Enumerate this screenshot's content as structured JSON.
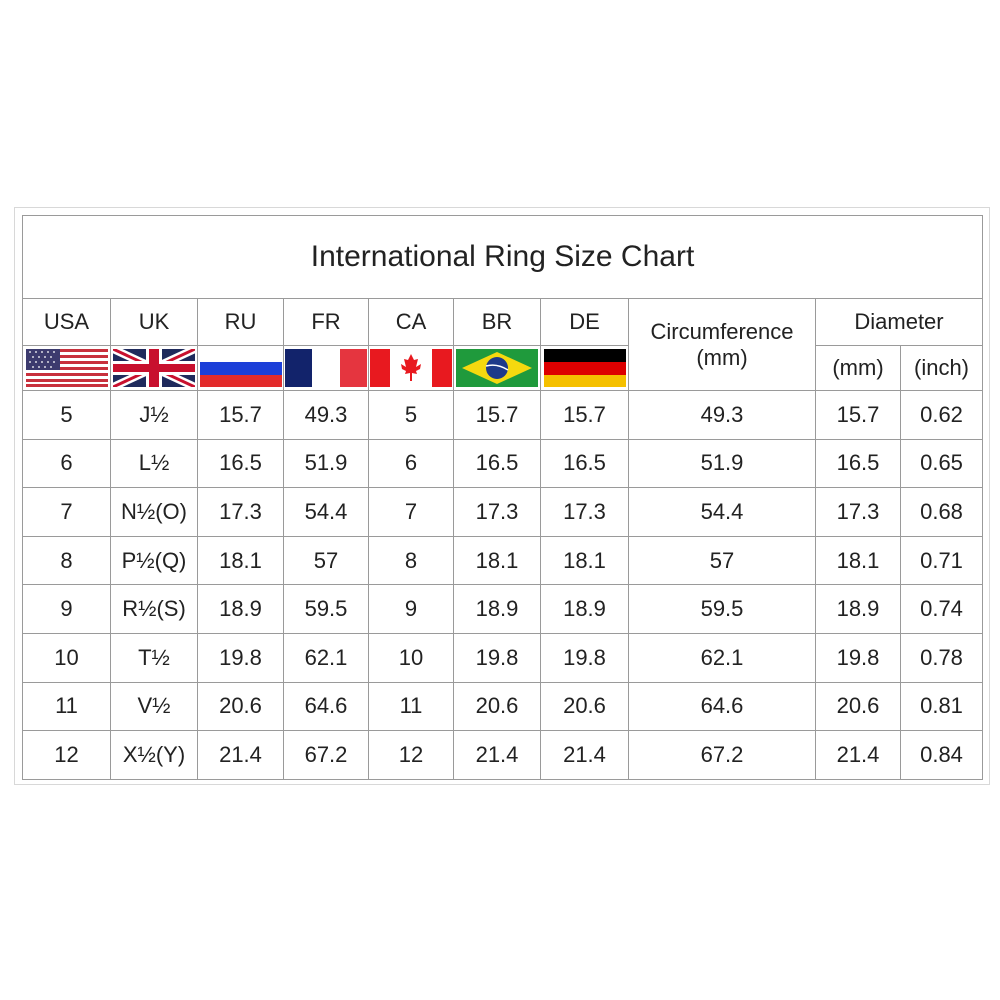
{
  "title": "International Ring Size Chart",
  "headers": {
    "countries": [
      "USA",
      "UK",
      "RU",
      "FR",
      "CA",
      "BR",
      "DE"
    ],
    "circumference": "Circumference",
    "circumference_unit": "(mm)",
    "diameter": "Diameter",
    "diameter_mm": "(mm)",
    "diameter_inch": "(inch)"
  },
  "flags": [
    "usa-flag-icon",
    "uk-flag-icon",
    "russia-flag-icon",
    "france-flag-icon",
    "canada-flag-icon",
    "brazil-flag-icon",
    "germany-flag-icon"
  ],
  "rows": [
    [
      "5",
      "J½",
      "15.7",
      "49.3",
      "5",
      "15.7",
      "15.7",
      "49.3",
      "15.7",
      "0.62"
    ],
    [
      "6",
      "L½",
      "16.5",
      "51.9",
      "6",
      "16.5",
      "16.5",
      "51.9",
      "16.5",
      "0.65"
    ],
    [
      "7",
      "N½(O)",
      "17.3",
      "54.4",
      "7",
      "17.3",
      "17.3",
      "54.4",
      "17.3",
      "0.68"
    ],
    [
      "8",
      "P½(Q)",
      "18.1",
      "57",
      "8",
      "18.1",
      "18.1",
      "57",
      "18.1",
      "0.71"
    ],
    [
      "9",
      "R½(S)",
      "18.9",
      "59.5",
      "9",
      "18.9",
      "18.9",
      "59.5",
      "18.9",
      "0.74"
    ],
    [
      "10",
      "T½",
      "19.8",
      "62.1",
      "10",
      "19.8",
      "19.8",
      "62.1",
      "19.8",
      "0.78"
    ],
    [
      "11",
      "V½",
      "20.6",
      "64.6",
      "11",
      "20.6",
      "20.6",
      "64.6",
      "20.6",
      "0.81"
    ],
    [
      "12",
      "X½(Y)",
      "21.4",
      "67.2",
      "12",
      "21.4",
      "21.4",
      "67.2",
      "21.4",
      "0.84"
    ]
  ]
}
